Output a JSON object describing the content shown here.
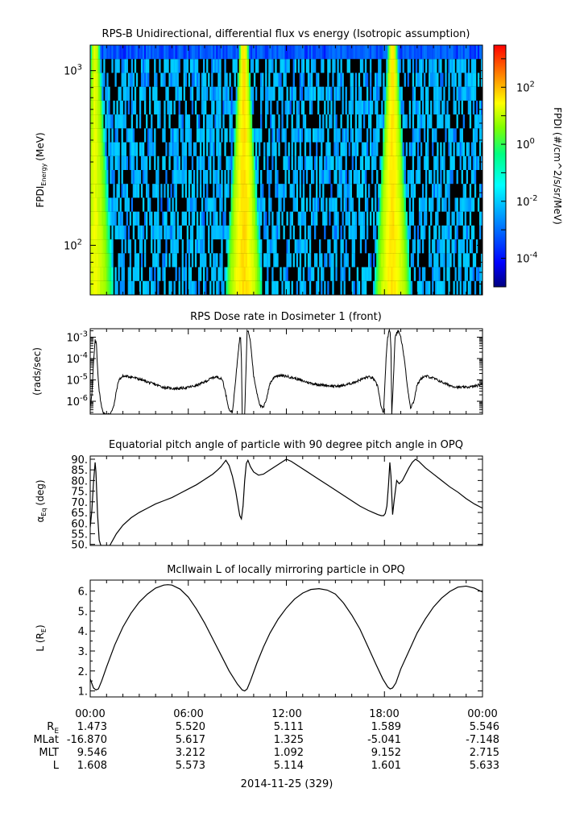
{
  "chart_data": [
    {
      "type": "heatmap",
      "title": "RPS-B  Unidirectional, differential flux vs energy (Isotropic assumption)",
      "ylabel": "FPDI",
      "ylabel_sub": "Energy",
      "ylabel_unit": "(MeV)",
      "yscale": "log",
      "ylim": [
        52,
        1400
      ],
      "yticks": [
        {
          "value": 100,
          "base": "10",
          "exp": "2"
        },
        {
          "value": 1000,
          "base": "10",
          "exp": "3"
        }
      ],
      "xlim": [
        0,
        24
      ],
      "colorbar": {
        "label": "FPDI (#/cm^2/s/sr/MeV)",
        "scale": "log",
        "range": [
          1e-05,
          3000
        ],
        "ticks": [
          {
            "value": 0.0001,
            "base": "10",
            "exp": "-4"
          },
          {
            "value": 0.01,
            "base": "10",
            "exp": "-2"
          },
          {
            "value": 1,
            "base": "10",
            "exp": "0"
          },
          {
            "value": 100,
            "base": "10",
            "exp": "2"
          }
        ],
        "colors": [
          "#000080",
          "#0000ff",
          "#00a0ff",
          "#00ffff",
          "#00ff80",
          "#80ff00",
          "#ffff00",
          "#ff8000",
          "#ff0000"
        ]
      },
      "features": {
        "nodata_color": "#000000",
        "background_flux": 0.0015,
        "top_band_flux": 0.0003,
        "radiation_belt_passes": [
          {
            "center_hr": 0.3,
            "peak_flux": 20
          },
          {
            "center_hr": 9.4,
            "peak_flux": 60
          },
          {
            "center_hr": 18.5,
            "peak_flux": 50
          }
        ]
      }
    },
    {
      "type": "line",
      "title": "RPS  Dose rate in Dosimeter 1 (front)",
      "ylabel": "(rads/sec)",
      "yscale": "log",
      "ylim": [
        2.5e-07,
        0.0025
      ],
      "yticks": [
        {
          "value": 1e-06,
          "base": "10",
          "exp": "-6"
        },
        {
          "value": 1e-05,
          "base": "10",
          "exp": "-5"
        },
        {
          "value": 0.0001,
          "base": "10",
          "exp": "-4"
        },
        {
          "value": 0.001,
          "base": "10",
          "exp": "-3"
        }
      ],
      "xlim": [
        0,
        24
      ],
      "series": [
        {
          "x": [
            0.0,
            0.1,
            0.2,
            0.3,
            0.38,
            0.42,
            0.47,
            0.55,
            0.7,
            0.85,
            1.0,
            1.2,
            1.45,
            1.6,
            1.75,
            2.0,
            2.5,
            3.0,
            3.5,
            4.0,
            4.5,
            5.0,
            5.5,
            6.0,
            6.5,
            7.0,
            7.5,
            7.8,
            8.1,
            8.3,
            8.5,
            8.7,
            8.9,
            9.05,
            9.15,
            9.2,
            9.25,
            9.3,
            9.45,
            9.6,
            9.7,
            9.8,
            9.9,
            10.0,
            10.2,
            10.4,
            10.6,
            10.8,
            11.0,
            11.3,
            11.6,
            12.0,
            12.5,
            13.0,
            13.5,
            14.0,
            14.5,
            15.0,
            15.5,
            16.0,
            16.5,
            17.0,
            17.3,
            17.6,
            17.8,
            17.95,
            18.1,
            18.2,
            18.3,
            18.35,
            18.4,
            18.45,
            18.55,
            18.65,
            18.8,
            18.95,
            19.1,
            19.25,
            19.4,
            19.6,
            19.8,
            20.0,
            20.3,
            20.6,
            21.0,
            21.5,
            22.0,
            22.5,
            23.0,
            23.5,
            24.0
          ],
          "y": [
            6e-07,
            2e-06,
            6e-05,
            0.0007,
            0.0005,
            0.0001,
            2e-05,
            3e-06,
            5e-07,
            2.5e-07,
            2.5e-07,
            2.5e-07,
            6e-07,
            3e-06,
            1e-05,
            1.5e-05,
            1.4e-05,
            1.1e-05,
            8e-06,
            6e-06,
            4.5e-06,
            4e-06,
            4e-06,
            4.5e-06,
            5.5e-06,
            8e-06,
            1.3e-05,
            1.4e-05,
            1e-05,
            2e-06,
            4e-07,
            3e-07,
            1e-05,
            0.0002,
            0.0009,
            0.001,
            0.00011,
            2.5e-07,
            2.5e-07,
            0.002,
            0.0016,
            0.0006,
            0.0001,
            1.5e-05,
            2.5e-06,
            6e-07,
            5e-07,
            1.5e-06,
            7e-06,
            1.5e-05,
            1.6e-05,
            1.5e-05,
            1.2e-05,
            9e-06,
            7e-06,
            6e-06,
            5.5e-06,
            5e-06,
            5.5e-06,
            7e-06,
            1e-05,
            1.4e-05,
            1.2e-05,
            5e-06,
            5e-07,
            3e-07,
            0.0001,
            0.001,
            0.002,
            0.0015,
            0.0003,
            2.5e-07,
            1e-05,
            0.001,
            0.002,
            0.0015,
            0.0004,
            6e-05,
            5e-06,
            5e-07,
            1e-06,
            6e-06,
            1.3e-05,
            1.5e-05,
            1.2e-05,
            8e-06,
            5.5e-06,
            4.5e-06,
            4.5e-06,
            5e-06,
            6.5e-06
          ]
        }
      ]
    },
    {
      "type": "line",
      "title": "Equatorial pitch angle of particle with 90 degree pitch angle in OPQ",
      "ylabel": "α",
      "ylabel_sub": "Eq",
      "ylabel_unit": "(deg)",
      "ylim": [
        49.5,
        91.5
      ],
      "yticks": [
        "50.",
        "55.",
        "60.",
        "65.",
        "70.",
        "75.",
        "80.",
        "85.",
        "90."
      ],
      "xlim": [
        0,
        24
      ],
      "series": [
        {
          "x": [
            0.0,
            0.1,
            0.2,
            0.3,
            0.35,
            0.45,
            0.55,
            0.65,
            0.7,
            0.75,
            0.9,
            1.2,
            1.6,
            2.0,
            2.5,
            3.0,
            3.5,
            4.0,
            4.5,
            5.0,
            5.5,
            6.0,
            6.5,
            7.0,
            7.5,
            7.8,
            8.0,
            8.1,
            8.3,
            8.5,
            8.7,
            8.9,
            9.05,
            9.15,
            9.25,
            9.35,
            9.45,
            9.55,
            9.65,
            9.8,
            10.0,
            10.3,
            10.6,
            11.0,
            11.4,
            11.8,
            12.0,
            12.3,
            12.6,
            13.0,
            13.5,
            14.0,
            14.5,
            15.0,
            15.5,
            16.0,
            16.5,
            17.0,
            17.3,
            17.6,
            17.8,
            17.95,
            18.05,
            18.15,
            18.25,
            18.33,
            18.4,
            18.5,
            18.6,
            18.75,
            18.9,
            19.1,
            19.3,
            19.5,
            19.7,
            19.9,
            20.1,
            20.5,
            21.0,
            21.5,
            22.0,
            22.5,
            23.0,
            23.5,
            24.0
          ],
          "y": [
            58,
            66,
            79,
            88.5,
            84,
            64,
            52,
            49.5,
            49.5,
            49.5,
            49.5,
            49.5,
            55,
            59,
            62.5,
            65,
            67,
            69,
            70.5,
            72,
            74,
            76,
            78,
            80.5,
            83,
            85,
            86.5,
            87.5,
            89.5,
            87,
            82,
            75,
            68,
            63.5,
            62,
            68,
            80,
            88,
            89.5,
            86.5,
            84,
            82.5,
            83,
            85,
            87,
            89,
            90,
            89,
            87.5,
            85.5,
            83,
            80.5,
            78,
            75.5,
            73,
            70.5,
            68,
            66,
            65,
            64,
            63.5,
            63.5,
            64.5,
            68,
            78,
            88.5,
            82,
            64,
            71,
            80,
            78.5,
            80,
            83,
            86,
            88.5,
            90,
            89,
            86,
            83,
            80,
            77,
            74.5,
            71.5,
            69,
            67
          ]
        }
      ]
    },
    {
      "type": "line",
      "title": "McIlwain L of locally mirroring particle in OPQ",
      "ylabel": "L (R",
      "ylabel_sub": "E",
      "ylabel_unit": ")",
      "ylim": [
        0.7,
        6.55
      ],
      "yticks": [
        "1.",
        "2.",
        "3.",
        "4.",
        "5.",
        "6."
      ],
      "xlim": [
        0,
        24
      ],
      "series": [
        {
          "x": [
            0.0,
            0.2,
            0.35,
            0.5,
            0.7,
            1.0,
            1.5,
            2.0,
            2.5,
            3.0,
            3.5,
            4.0,
            4.5,
            4.75,
            5.0,
            5.5,
            6.0,
            6.5,
            7.0,
            7.5,
            8.0,
            8.5,
            9.0,
            9.3,
            9.45,
            9.6,
            9.8,
            10.2,
            10.6,
            11.0,
            11.5,
            12.0,
            12.5,
            13.0,
            13.5,
            14.0,
            14.5,
            15.0,
            15.5,
            16.0,
            16.5,
            17.0,
            17.5,
            17.9,
            18.2,
            18.35,
            18.5,
            18.7,
            19.0,
            19.5,
            20.0,
            20.5,
            21.0,
            21.5,
            22.0,
            22.5,
            23.0,
            23.5,
            24.0
          ],
          "y": [
            1.6,
            1.15,
            1.05,
            1.1,
            1.5,
            2.2,
            3.3,
            4.2,
            4.9,
            5.45,
            5.85,
            6.15,
            6.3,
            6.32,
            6.3,
            6.1,
            5.7,
            5.1,
            4.4,
            3.6,
            2.8,
            2.0,
            1.35,
            1.05,
            1.0,
            1.1,
            1.5,
            2.4,
            3.2,
            3.9,
            4.6,
            5.15,
            5.6,
            5.9,
            6.08,
            6.12,
            6.05,
            5.85,
            5.4,
            4.8,
            4.1,
            3.2,
            2.3,
            1.6,
            1.2,
            1.1,
            1.15,
            1.4,
            2.1,
            3.0,
            3.9,
            4.6,
            5.2,
            5.65,
            5.98,
            6.2,
            6.25,
            6.15,
            5.95
          ]
        }
      ]
    }
  ],
  "x_axis": {
    "tick_labels": [
      "00:00",
      "06:00",
      "12:00",
      "18:00",
      "00:00"
    ],
    "tick_hours": [
      0,
      6,
      12,
      18,
      24
    ],
    "date_label": "2014-11-25 (329)"
  },
  "ephemeris": {
    "rows": [
      {
        "label": "R",
        "label_sub": "E",
        "values": [
          "1.473",
          "5.520",
          "5.111",
          "1.589",
          "5.546"
        ]
      },
      {
        "label": "MLat",
        "label_sub": "",
        "values": [
          "-16.870",
          "5.617",
          "1.325",
          "-5.041",
          "-7.148"
        ]
      },
      {
        "label": "MLT",
        "label_sub": "",
        "values": [
          "9.546",
          "3.212",
          "1.092",
          "9.152",
          "2.715"
        ]
      },
      {
        "label": "L",
        "label_sub": "",
        "values": [
          "1.608",
          "5.573",
          "5.114",
          "1.601",
          "5.633"
        ]
      }
    ]
  }
}
